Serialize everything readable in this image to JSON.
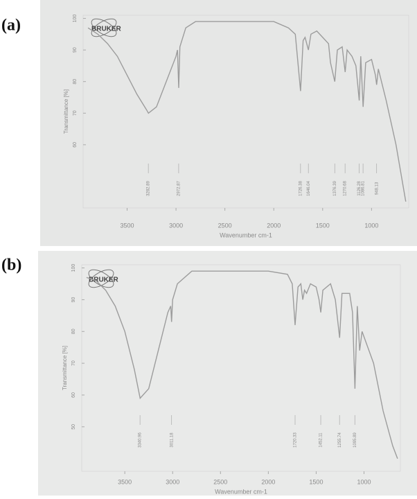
{
  "chart_data": [
    {
      "type": "line",
      "panel_label": "(a)",
      "logo": "BRUKER",
      "ylabel": "Transmittance [%]",
      "xlabel": "Wavenumber cm-1",
      "xlim": [
        3950,
        620
      ],
      "xticks": [
        3500,
        3000,
        2500,
        2000,
        1500,
        1000
      ],
      "ylim": [
        40,
        101
      ],
      "yticks": [
        60,
        70,
        80,
        90,
        100
      ],
      "color": "#9c9c9c",
      "x": [
        3900,
        3800,
        3700,
        3600,
        3500,
        3400,
        3300,
        3282,
        3200,
        3100,
        3000,
        2985,
        2972,
        2960,
        2900,
        2800,
        2500,
        2000,
        1850,
        1780,
        1726,
        1700,
        1680,
        1646,
        1620,
        1560,
        1500,
        1440,
        1420,
        1376,
        1350,
        1300,
        1270,
        1250,
        1200,
        1160,
        1126,
        1110,
        1086,
        1060,
        1000,
        960,
        948,
        930,
        850,
        750,
        650
      ],
      "values": [
        97,
        95,
        92,
        88,
        82,
        76,
        71,
        70,
        72,
        80,
        88,
        90,
        78,
        91,
        97,
        99,
        99,
        99,
        97,
        95,
        77,
        93,
        94,
        90,
        95,
        96,
        94,
        92,
        86,
        80,
        90,
        91,
        83,
        90,
        88,
        85,
        74,
        88,
        72,
        86,
        87,
        82,
        79,
        84,
        74,
        60,
        42
      ],
      "peaks": [
        3282.89,
        2972.87,
        1726.38,
        1646.04,
        1376.39,
        1270.68,
        1126.28,
        1086.81,
        948.13
      ]
    },
    {
      "type": "line",
      "panel_label": "(b)",
      "logo": "BRUKER",
      "ylabel": "Transmittance [%]",
      "xlabel": "Wavenumber cm-1",
      "xlim": [
        3950,
        620
      ],
      "xticks": [
        3500,
        3000,
        2500,
        2000,
        1500,
        1000
      ],
      "ylim": [
        36,
        101
      ],
      "yticks": [
        50,
        60,
        70,
        80,
        90,
        100
      ],
      "color": "#9c9c9c",
      "x": [
        3900,
        3800,
        3700,
        3600,
        3500,
        3400,
        3340,
        3250,
        3150,
        3050,
        3020,
        3011,
        3000,
        2950,
        2800,
        2500,
        2000,
        1800,
        1750,
        1720,
        1690,
        1660,
        1640,
        1622,
        1600,
        1560,
        1500,
        1470,
        1452,
        1430,
        1350,
        1300,
        1255,
        1230,
        1150,
        1120,
        1095,
        1070,
        1046,
        1020,
        900,
        800,
        700,
        650
      ],
      "values": [
        97,
        96,
        93,
        88,
        80,
        68,
        59,
        62,
        74,
        86,
        88,
        83,
        90,
        95,
        99,
        99,
        99,
        98,
        95,
        82,
        94,
        95,
        90,
        93,
        92,
        95,
        94,
        90,
        86,
        93,
        95,
        90,
        78,
        92,
        92,
        86,
        62,
        88,
        74,
        80,
        70,
        55,
        44,
        40
      ],
      "peaks": [
        3340.96,
        3011.18,
        1720.33,
        1452.11,
        1255.74,
        1095.89
      ]
    }
  ]
}
